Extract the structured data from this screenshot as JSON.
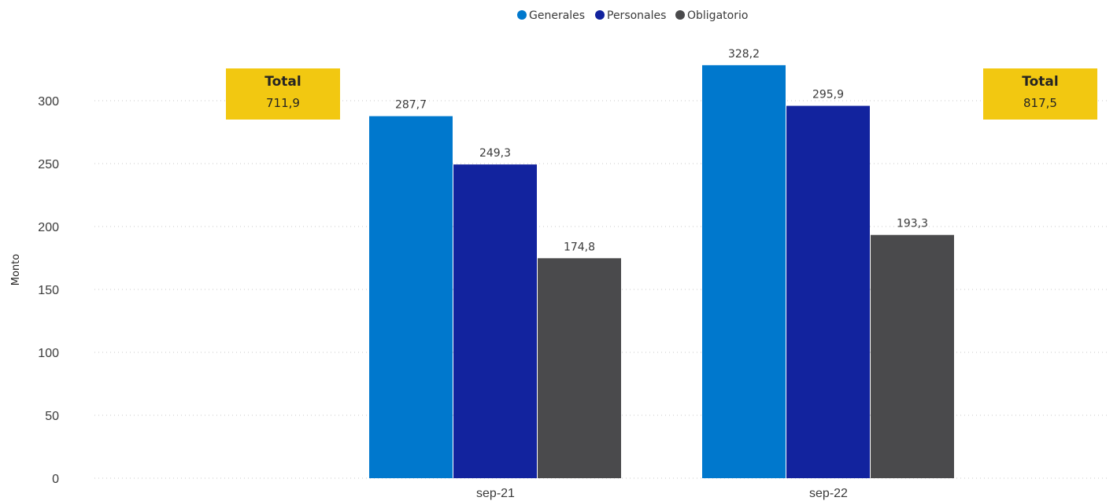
{
  "chart_data": {
    "type": "bar",
    "categories": [
      "sep-21",
      "sep-22"
    ],
    "series": [
      {
        "name": "Generales",
        "values": [
          287.7,
          328.2
        ],
        "labels": [
          "287,7",
          "328,2"
        ],
        "color": "#0078CD"
      },
      {
        "name": "Personales",
        "values": [
          249.3,
          295.9
        ],
        "labels": [
          "249,3",
          "295,9"
        ],
        "color": "#12239E"
      },
      {
        "name": "Obligatorio",
        "values": [
          174.8,
          193.3
        ],
        "labels": [
          "174,8",
          "193,3"
        ],
        "color": "#4A4A4C"
      }
    ],
    "title": "",
    "xlabel": "",
    "ylabel": "Monto",
    "ylim": [
      0,
      340
    ],
    "yticks": [
      0,
      50,
      100,
      150,
      200,
      250,
      300
    ],
    "ytick_labels": [
      "0",
      "50",
      "100",
      "150",
      "200",
      "250",
      "300"
    ],
    "grid": "horizontal-dotted",
    "legend_position": "top-center"
  },
  "totals": [
    {
      "title": "Total",
      "value": "711,9",
      "position": "left"
    },
    {
      "title": "Total",
      "value": "817,5",
      "position": "right"
    }
  ],
  "colors": {
    "total_box": "#F2C811",
    "grid": "#c8c8c8"
  }
}
